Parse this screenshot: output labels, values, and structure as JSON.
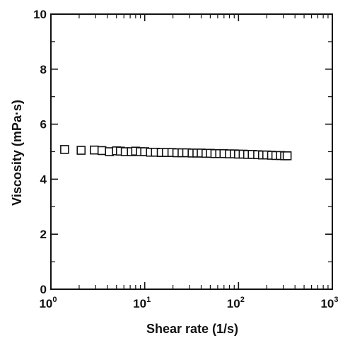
{
  "chart_data": {
    "type": "scatter",
    "title": "",
    "xlabel": "Shear rate (1/s)",
    "ylabel": "Viscosity (mPa·s)",
    "xscale": "log",
    "xlim": [
      1,
      1000
    ],
    "ylim": [
      0,
      10
    ],
    "x_ticks": [
      1,
      10,
      100,
      1000
    ],
    "x_tick_labels": [
      {
        "base": "10",
        "exp": "0"
      },
      {
        "base": "10",
        "exp": "1"
      },
      {
        "base": "10",
        "exp": "2"
      },
      {
        "base": "10",
        "exp": "3"
      }
    ],
    "y_ticks": [
      0,
      2,
      4,
      6,
      8,
      10
    ],
    "y_tick_labels": [
      "0",
      "2",
      "4",
      "6",
      "8",
      "10"
    ],
    "grid": false,
    "legend": "none",
    "marker": "open-square",
    "series": [
      {
        "x": [
          1.4,
          2.1,
          2.9,
          3.5,
          4.2,
          5.0,
          5.5,
          6.2,
          7.2,
          8.0,
          9.0,
          10.0,
          11.5,
          13,
          15,
          17,
          19.5,
          22,
          25,
          28,
          32,
          36,
          40,
          45,
          50,
          56,
          63,
          70,
          80,
          90,
          100,
          112,
          125,
          140,
          160,
          180,
          200,
          225,
          250,
          280,
          310,
          330
        ],
        "y": [
          5.08,
          5.05,
          5.06,
          5.04,
          5.0,
          5.03,
          5.02,
          5.0,
          5.0,
          5.02,
          5.0,
          5.0,
          4.98,
          4.98,
          4.97,
          4.97,
          4.97,
          4.96,
          4.96,
          4.96,
          4.95,
          4.95,
          4.95,
          4.94,
          4.94,
          4.93,
          4.93,
          4.93,
          4.92,
          4.92,
          4.91,
          4.91,
          4.9,
          4.9,
          4.89,
          4.88,
          4.88,
          4.87,
          4.86,
          4.86,
          4.85,
          4.85
        ]
      }
    ]
  }
}
